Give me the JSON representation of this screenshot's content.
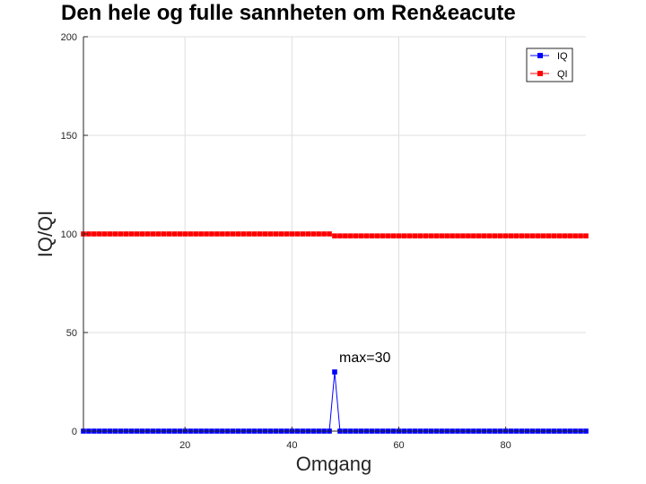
{
  "chart_data": {
    "type": "line",
    "title": "Den hele og fulle sannheten om Ren&eacute",
    "xlabel": "Omgang",
    "ylabel": "IQ/QI",
    "xlim": [
      1,
      95
    ],
    "ylim": [
      0,
      200
    ],
    "xticks": [
      20,
      40,
      60,
      80
    ],
    "yticks": [
      0,
      50,
      100,
      150,
      200
    ],
    "grid": true,
    "legend_position": "top-right",
    "annotation": {
      "text": "max=30",
      "x": 48,
      "y": 30
    },
    "series": [
      {
        "name": "IQ",
        "color": "#0000ff",
        "marker": "square",
        "x": [
          1,
          2,
          3,
          4,
          5,
          6,
          7,
          8,
          9,
          10,
          11,
          12,
          13,
          14,
          15,
          16,
          17,
          18,
          19,
          20,
          21,
          22,
          23,
          24,
          25,
          26,
          27,
          28,
          29,
          30,
          31,
          32,
          33,
          34,
          35,
          36,
          37,
          38,
          39,
          40,
          41,
          42,
          43,
          44,
          45,
          46,
          47,
          48,
          49,
          50,
          51,
          52,
          53,
          54,
          55,
          56,
          57,
          58,
          59,
          60,
          61,
          62,
          63,
          64,
          65,
          66,
          67,
          68,
          69,
          70,
          71,
          72,
          73,
          74,
          75,
          76,
          77,
          78,
          79,
          80,
          81,
          82,
          83,
          84,
          85,
          86,
          87,
          88,
          89,
          90,
          91,
          92,
          93,
          94,
          95
        ],
        "values": [
          0,
          0,
          0,
          0,
          0,
          0,
          0,
          0,
          0,
          0,
          0,
          0,
          0,
          0,
          0,
          0,
          0,
          0,
          0,
          0,
          0,
          0,
          0,
          0,
          0,
          0,
          0,
          0,
          0,
          0,
          0,
          0,
          0,
          0,
          0,
          0,
          0,
          0,
          0,
          0,
          0,
          0,
          0,
          0,
          0,
          0,
          0,
          30,
          0,
          0,
          0,
          0,
          0,
          0,
          0,
          0,
          0,
          0,
          0,
          0,
          0,
          0,
          0,
          0,
          0,
          0,
          0,
          0,
          0,
          0,
          0,
          0,
          0,
          0,
          0,
          0,
          0,
          0,
          0,
          0,
          0,
          0,
          0,
          0,
          0,
          0,
          0,
          0,
          0,
          0,
          0,
          0,
          0,
          0,
          0
        ]
      },
      {
        "name": "QI",
        "color": "#ff0000",
        "marker": "square",
        "x": [
          1,
          2,
          3,
          4,
          5,
          6,
          7,
          8,
          9,
          10,
          11,
          12,
          13,
          14,
          15,
          16,
          17,
          18,
          19,
          20,
          21,
          22,
          23,
          24,
          25,
          26,
          27,
          28,
          29,
          30,
          31,
          32,
          33,
          34,
          35,
          36,
          37,
          38,
          39,
          40,
          41,
          42,
          43,
          44,
          45,
          46,
          47,
          48,
          49,
          50,
          51,
          52,
          53,
          54,
          55,
          56,
          57,
          58,
          59,
          60,
          61,
          62,
          63,
          64,
          65,
          66,
          67,
          68,
          69,
          70,
          71,
          72,
          73,
          74,
          75,
          76,
          77,
          78,
          79,
          80,
          81,
          82,
          83,
          84,
          85,
          86,
          87,
          88,
          89,
          90,
          91,
          92,
          93,
          94,
          95
        ],
        "values": [
          100,
          100,
          100,
          100,
          100,
          100,
          100,
          100,
          100,
          100,
          100,
          100,
          100,
          100,
          100,
          100,
          100,
          100,
          100,
          100,
          100,
          100,
          100,
          100,
          100,
          100,
          100,
          100,
          100,
          100,
          100,
          100,
          100,
          100,
          100,
          100,
          100,
          100,
          100,
          100,
          100,
          100,
          100,
          100,
          100,
          100,
          100,
          99,
          99,
          99,
          99,
          99,
          99,
          99,
          99,
          99,
          99,
          99,
          99,
          99,
          99,
          99,
          99,
          99,
          99,
          99,
          99,
          99,
          99,
          99,
          99,
          99,
          99,
          99,
          99,
          99,
          99,
          99,
          99,
          99,
          99,
          99,
          99,
          99,
          99,
          99,
          99,
          99,
          99,
          99,
          99,
          99,
          99,
          99,
          99
        ]
      }
    ]
  }
}
